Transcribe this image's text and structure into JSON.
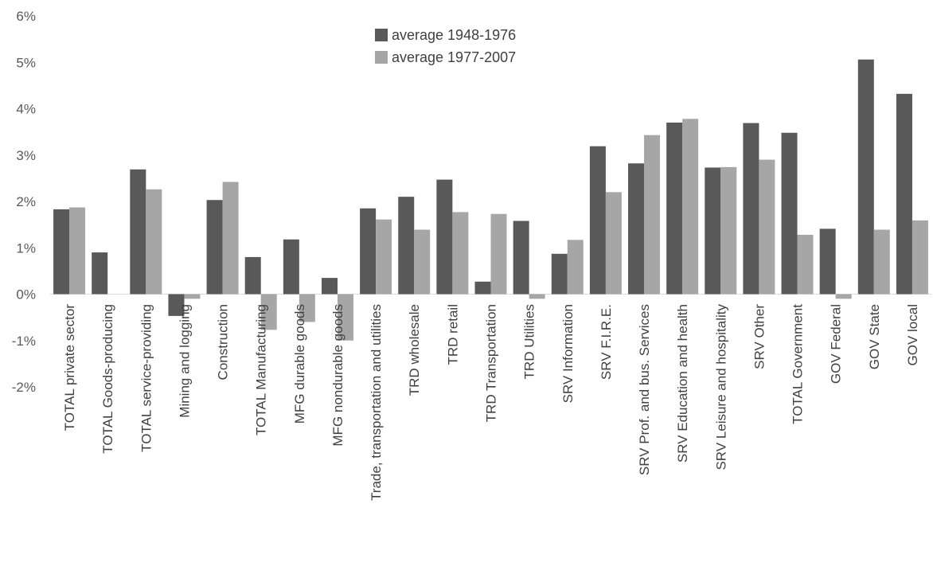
{
  "chart_data": {
    "type": "bar",
    "title": "",
    "xlabel": "",
    "ylabel": "",
    "ylim": [
      -0.02,
      0.06
    ],
    "yticks": [
      -0.02,
      -0.01,
      0.0,
      0.01,
      0.02,
      0.03,
      0.04,
      0.05,
      0.06
    ],
    "ytick_labels": [
      "-2%",
      "-1%",
      "0%",
      "1%",
      "2%",
      "3%",
      "4%",
      "5%",
      "6%"
    ],
    "grid": false,
    "legend_position": "top-center",
    "categories": [
      "TOTAL private sector",
      "TOTAL Goods-producing",
      "TOTAL service-providing",
      "Mining and logging",
      "Construction",
      "TOTAL Manufacturing",
      "MFG durable goods",
      "MFG nondurable goods",
      "Trade, transportation and utilities",
      "TRD wholesale",
      "TRD retail",
      "TRD Transportation",
      "TRD Utilities",
      "SRV Information",
      "SRV F.I.R.E.",
      "SRV Prof. and bus. Services",
      "SRV Education and health",
      "SRV Leisure and hospitality",
      "SRV Other",
      "TOTAL Government",
      "GOV Federal",
      "GOV State",
      "GOV local"
    ],
    "series": [
      {
        "name": "average 1948-1976",
        "color": "#595959",
        "values": [
          0.0183,
          0.009,
          0.0269,
          -0.0047,
          0.0203,
          0.008,
          0.0118,
          0.0035,
          0.0185,
          0.021,
          0.0247,
          0.0027,
          0.0158,
          0.0087,
          0.0319,
          0.0282,
          0.037,
          0.0273,
          0.0369,
          0.0348,
          0.0141,
          0.0506,
          0.0432
        ]
      },
      {
        "name": "average 1977-2007",
        "color": "#a6a6a6",
        "values": [
          0.0187,
          0.0,
          0.0226,
          -0.001,
          0.0242,
          -0.0077,
          -0.006,
          -0.01,
          0.0161,
          0.0139,
          0.0177,
          0.0173,
          -0.001,
          0.0117,
          0.022,
          0.0343,
          0.0378,
          0.0274,
          0.029,
          0.0128,
          -0.001,
          0.0139,
          0.0159
        ]
      }
    ]
  }
}
